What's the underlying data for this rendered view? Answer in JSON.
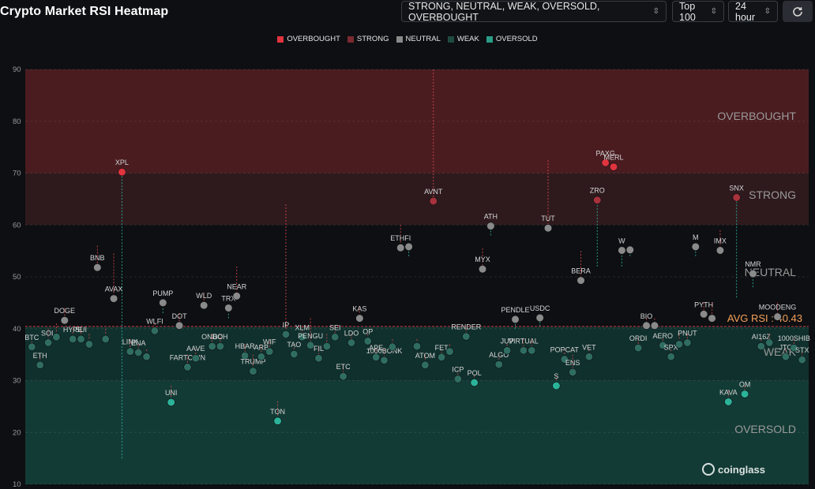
{
  "title": "Crypto Market RSI Heatmap",
  "controls": {
    "filter": "STRONG, NEUTRAL, WEAK, OVERSOLD, OVERBOUGHT",
    "top": "Top 100",
    "period": "24 hour",
    "refresh_icon": "refresh-icon"
  },
  "legend": [
    {
      "label": "OVERBOUGHT",
      "color": "#e0343f"
    },
    {
      "label": "STRONG",
      "color": "#7a2a30"
    },
    {
      "label": "NEUTRAL",
      "color": "#8a8a8a"
    },
    {
      "label": "WEAK",
      "color": "#1f4a42"
    },
    {
      "label": "OVERSOLD",
      "color": "#2a9d86"
    }
  ],
  "watermark": "coinglass",
  "chart_data": {
    "type": "scatter",
    "title": "",
    "xlabel": "",
    "ylabel": "",
    "ylim": [
      10,
      90
    ],
    "y_ticks": [
      10,
      20,
      30,
      40,
      50,
      60,
      70,
      80,
      90
    ],
    "grid": true,
    "zones": [
      {
        "label": "OVERBOUGHT",
        "from": 70,
        "to": 90,
        "color": "#4a1c20"
      },
      {
        "label": "STRONG",
        "from": 60,
        "to": 70,
        "color": "#2e1a1d"
      },
      {
        "label": "NEUTRAL",
        "from": 40.43,
        "to": 60,
        "color": "#0d0f12"
      },
      {
        "label": "WEAK",
        "from": 30,
        "to": 40.43,
        "color": "#10302d"
      },
      {
        "label": "OVERSOLD",
        "from": 10,
        "to": 30,
        "color": "#133b35"
      }
    ],
    "avg_rsi": 40.43,
    "avg_label": "AVG RSI : 40.43",
    "colors": {
      "overbought": "#e0343f",
      "strong": "#a8323b",
      "neutral": "#8a8a8a",
      "weak": "#2f6d61",
      "oversold": "#2bb39a"
    },
    "points": [
      {
        "name": "BTC",
        "x": 1,
        "y": 36.5,
        "prev": 37.5
      },
      {
        "name": "ETH",
        "x": 2,
        "y": 33,
        "prev": 35
      },
      {
        "name": "SOL",
        "x": 3,
        "y": 37.3,
        "prev": 40
      },
      {
        "name": "",
        "x": 4,
        "y": 38.4,
        "prev": 41
      },
      {
        "name": "DOGE",
        "x": 5,
        "y": 41.6,
        "prev": 44
      },
      {
        "name": "HYPE",
        "x": 6,
        "y": 38,
        "prev": 40
      },
      {
        "name": "SUI",
        "x": 7,
        "y": 38,
        "prev": 40
      },
      {
        "name": "",
        "x": 8,
        "y": 37,
        "prev": 39
      },
      {
        "name": "BNB",
        "x": 9,
        "y": 51.8,
        "prev": 56
      },
      {
        "name": "",
        "x": 10,
        "y": 38,
        "prev": 40
      },
      {
        "name": "AVAX",
        "x": 11,
        "y": 45.8,
        "prev": 54.5
      },
      {
        "name": "XPL",
        "x": 12,
        "y": 70.2,
        "prev": 15
      },
      {
        "name": "LINK",
        "x": 13,
        "y": 35.6,
        "prev": 38
      },
      {
        "name": "ENA",
        "x": 14,
        "y": 35.4,
        "prev": 37
      },
      {
        "name": "",
        "x": 15,
        "y": 34.6,
        "prev": 36
      },
      {
        "name": "WLFI",
        "x": 16,
        "y": 39.6,
        "prev": 41
      },
      {
        "name": "PUMP",
        "x": 17,
        "y": 45,
        "prev": 43
      },
      {
        "name": "UNI",
        "x": 18,
        "y": 25.8,
        "prev": 29
      },
      {
        "name": "DOT",
        "x": 19,
        "y": 40.6,
        "prev": 43
      },
      {
        "name": "FARTCOIN",
        "x": 20,
        "y": 32.6,
        "prev": 35
      },
      {
        "name": "AAVE",
        "x": 21,
        "y": 34.3,
        "prev": 36
      },
      {
        "name": "WLD",
        "x": 22,
        "y": 44.5,
        "prev": 47
      },
      {
        "name": "ONDO",
        "x": 23,
        "y": 36.6,
        "prev": 39
      },
      {
        "name": "BCH",
        "x": 24,
        "y": 36.6,
        "prev": 39
      },
      {
        "name": "TRX",
        "x": 25,
        "y": 44,
        "prev": 42
      },
      {
        "name": "NEAR",
        "x": 26,
        "y": 46.3,
        "prev": 52
      },
      {
        "name": "HBAR",
        "x": 27,
        "y": 34.8,
        "prev": 37
      },
      {
        "name": "TRUMP",
        "x": 28,
        "y": 31.8,
        "prev": 35
      },
      {
        "name": "ARB",
        "x": 29,
        "y": 34.6,
        "prev": 37
      },
      {
        "name": "WIF",
        "x": 30,
        "y": 35.6,
        "prev": 38
      },
      {
        "name": "TON",
        "x": 31,
        "y": 22.2,
        "prev": 26
      },
      {
        "name": "IP",
        "x": 32,
        "y": 38.9,
        "prev": 64
      },
      {
        "name": "TAO",
        "x": 33,
        "y": 35.1,
        "prev": 37
      },
      {
        "name": "XLM",
        "x": 34,
        "y": 38.4,
        "prev": 40.5
      },
      {
        "name": "PENGU",
        "x": 35,
        "y": 36.8,
        "prev": 42
      },
      {
        "name": "FIL",
        "x": 36,
        "y": 34.3,
        "prev": 36.5
      },
      {
        "name": "",
        "x": 37,
        "y": 36.6,
        "prev": 39
      },
      {
        "name": "SEI",
        "x": 38,
        "y": 38.4,
        "prev": 40
      },
      {
        "name": "ETC",
        "x": 39,
        "y": 30.8,
        "prev": 33
      },
      {
        "name": "LDO",
        "x": 40,
        "y": 37.3,
        "prev": 39
      },
      {
        "name": "KAS",
        "x": 41,
        "y": 42,
        "prev": 44
      },
      {
        "name": "OP",
        "x": 42,
        "y": 37.6,
        "prev": 39
      },
      {
        "name": "APE",
        "x": 43,
        "y": 34.5,
        "prev": 36
      },
      {
        "name": "1000BONK",
        "x": 44,
        "y": 33.9,
        "prev": 36
      },
      {
        "name": "",
        "x": 45,
        "y": 36.5,
        "prev": 38
      },
      {
        "name": "ETHFI",
        "x": 46,
        "y": 55.6,
        "prev": 60
      },
      {
        "name": "",
        "x": 47,
        "y": 55.8,
        "prev": 54
      },
      {
        "name": "",
        "x": 48,
        "y": 36.6,
        "prev": 38
      },
      {
        "name": "ATOM",
        "x": 49,
        "y": 33,
        "prev": 35
      },
      {
        "name": "AVNT",
        "x": 50,
        "y": 64.6,
        "prev": 90
      },
      {
        "name": "FET",
        "x": 51,
        "y": 34.5,
        "prev": 36
      },
      {
        "name": "",
        "x": 52,
        "y": 35.6,
        "prev": 37
      },
      {
        "name": "ICP",
        "x": 53,
        "y": 30.3,
        "prev": 32
      },
      {
        "name": "RENDER",
        "x": 54,
        "y": 38.5,
        "prev": 40
      },
      {
        "name": "POL",
        "x": 55,
        "y": 29.6,
        "prev": 31
      },
      {
        "name": "MYX",
        "x": 56,
        "y": 51.5,
        "prev": 55.5
      },
      {
        "name": "ATH",
        "x": 57,
        "y": 59.8,
        "prev": 58
      },
      {
        "name": "ALGO",
        "x": 58,
        "y": 33.1,
        "prev": 35
      },
      {
        "name": "JUP",
        "x": 59,
        "y": 35.8,
        "prev": 37
      },
      {
        "name": "PENDLE",
        "x": 60,
        "y": 41.8,
        "prev": 40
      },
      {
        "name": "VIRTUAL",
        "x": 61,
        "y": 35.8,
        "prev": 38
      },
      {
        "name": "",
        "x": 62,
        "y": 35.8,
        "prev": 38
      },
      {
        "name": "USDC",
        "x": 63,
        "y": 42.1,
        "prev": 40.5
      },
      {
        "name": "TUT",
        "x": 64,
        "y": 59.4,
        "prev": 72.5
      },
      {
        "name": "S",
        "x": 65,
        "y": 29,
        "prev": 31
      },
      {
        "name": "POPCAT",
        "x": 66,
        "y": 34.1,
        "prev": 36
      },
      {
        "name": "ENS",
        "x": 67,
        "y": 31.6,
        "prev": 35
      },
      {
        "name": "BERA",
        "x": 68,
        "y": 49.3,
        "prev": 55
      },
      {
        "name": "VET",
        "x": 69,
        "y": 34.6,
        "prev": 36
      },
      {
        "name": "ZRO",
        "x": 70,
        "y": 64.8,
        "prev": 52
      },
      {
        "name": "PAXG",
        "x": 71,
        "y": 72,
        "prev": 72
      },
      {
        "name": "MERL",
        "x": 72,
        "y": 71.2,
        "prev": 71
      },
      {
        "name": "W",
        "x": 73,
        "y": 55.1,
        "prev": 52
      },
      {
        "name": "",
        "x": 74,
        "y": 55.2,
        "prev": 54
      },
      {
        "name": "ORDI",
        "x": 75,
        "y": 36.3,
        "prev": 38
      },
      {
        "name": "BIO",
        "x": 76,
        "y": 40.6,
        "prev": 42
      },
      {
        "name": "",
        "x": 77,
        "y": 40.6,
        "prev": 42
      },
      {
        "name": "AERO",
        "x": 78,
        "y": 36.8,
        "prev": 38
      },
      {
        "name": "SPX",
        "x": 79,
        "y": 34.6,
        "prev": 36
      },
      {
        "name": "",
        "x": 80,
        "y": 37,
        "prev": 39
      },
      {
        "name": "PNUT",
        "x": 81,
        "y": 37.3,
        "prev": 39
      },
      {
        "name": "M",
        "x": 82,
        "y": 55.8,
        "prev": 54
      },
      {
        "name": "PYTH",
        "x": 83,
        "y": 42.8,
        "prev": 45
      },
      {
        "name": "",
        "x": 84,
        "y": 42,
        "prev": 45
      },
      {
        "name": "IMX",
        "x": 85,
        "y": 55.1,
        "prev": 59
      },
      {
        "name": "KAVA",
        "x": 86,
        "y": 25.9,
        "prev": 28
      },
      {
        "name": "SNX",
        "x": 87,
        "y": 65.3,
        "prev": 46
      },
      {
        "name": "OM",
        "x": 88,
        "y": 27.4,
        "prev": 29
      },
      {
        "name": "NMR",
        "x": 89,
        "y": 50.6,
        "prev": 48
      },
      {
        "name": "AI16Z",
        "x": 90,
        "y": 36.6,
        "prev": 38
      },
      {
        "name": "",
        "x": 91,
        "y": 37.3,
        "prev": 39
      },
      {
        "name": "MOODENG",
        "x": 92,
        "y": 42.3,
        "prev": 45
      },
      {
        "name": "JTO",
        "x": 93,
        "y": 34.6,
        "prev": 36
      },
      {
        "name": "1000SHIB",
        "x": 94,
        "y": 36.3,
        "prev": 38
      },
      {
        "name": "STX",
        "x": 95,
        "y": 34,
        "prev": 35.5
      }
    ]
  }
}
